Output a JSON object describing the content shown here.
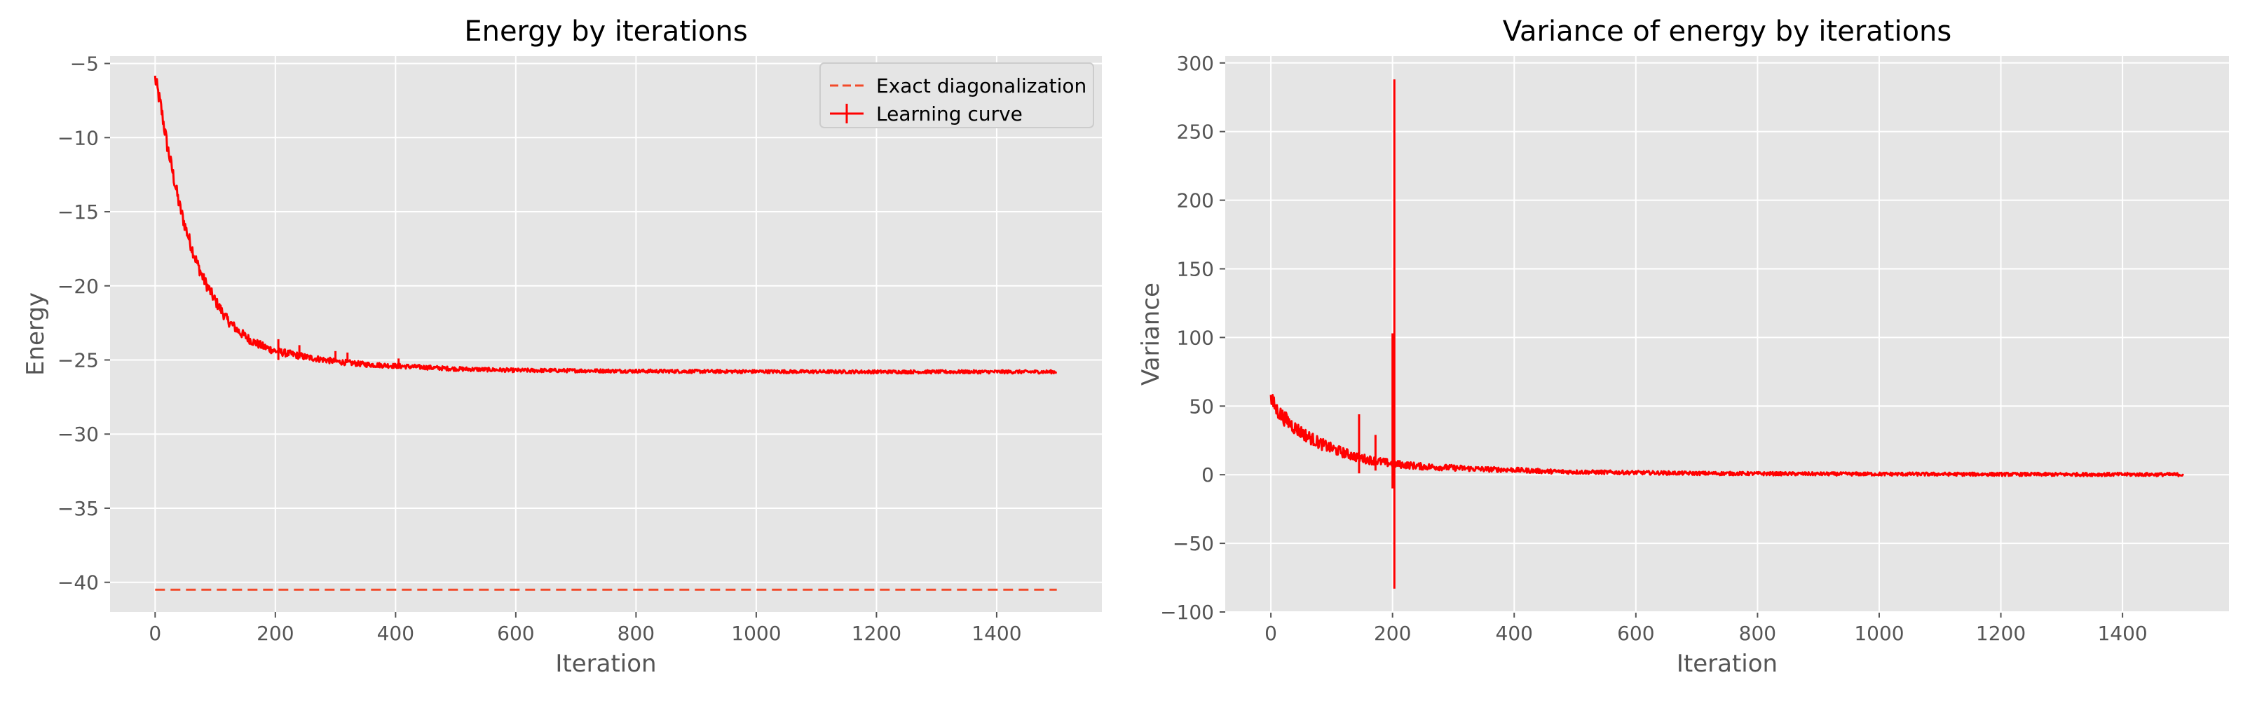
{
  "chart_data": [
    {
      "type": "line",
      "title": "Energy by iterations",
      "xlabel": "Iteration",
      "ylabel": "Energy",
      "xlim": [
        -75,
        1575
      ],
      "ylim": [
        -42,
        -4.5
      ],
      "xticks": [
        0,
        200,
        400,
        600,
        800,
        1000,
        1200,
        1400
      ],
      "yticks": [
        -5,
        -10,
        -15,
        -20,
        -25,
        -30,
        -35,
        -40
      ],
      "grid": true,
      "legend_placement": "top-right",
      "color": "#ff0000",
      "series": [
        {
          "name": "Exact diagonalization",
          "style": "dashed",
          "color": "#f24a2a",
          "x": [
            0,
            1500
          ],
          "y": [
            -40.5,
            -40.5
          ]
        },
        {
          "name": "Learning curve",
          "style": "solid-errorbar",
          "color": "#ff0000",
          "x": [
            0,
            10,
            20,
            30,
            40,
            50,
            60,
            70,
            80,
            100,
            120,
            140,
            160,
            180,
            200,
            250,
            300,
            350,
            400,
            450,
            500,
            600,
            700,
            800,
            900,
            1000,
            1100,
            1200,
            1300,
            1400,
            1500
          ],
          "y": [
            -6.0,
            -8.0,
            -10.5,
            -12.5,
            -14.5,
            -16.0,
            -17.3,
            -18.5,
            -19.5,
            -21.0,
            -22.3,
            -23.1,
            -23.7,
            -24.1,
            -24.4,
            -24.8,
            -25.1,
            -25.3,
            -25.4,
            -25.5,
            -25.6,
            -25.7,
            -25.72,
            -25.75,
            -25.77,
            -25.78,
            -25.79,
            -25.8,
            -25.8,
            -25.8,
            -25.8
          ],
          "spikes": [
            {
              "x": 205,
              "low": -25.0,
              "high": -23.6
            },
            {
              "x": 240,
              "low": -24.9,
              "high": -24.0
            },
            {
              "x": 300,
              "low": -25.0,
              "high": -24.4
            },
            {
              "x": 320,
              "low": -25.1,
              "high": -24.5
            },
            {
              "x": 405,
              "low": -25.6,
              "high": -24.9
            }
          ]
        }
      ]
    },
    {
      "type": "line",
      "title": "Variance of energy by iterations",
      "xlabel": "Iteration",
      "ylabel": "Variance",
      "xlim": [
        -75,
        1575
      ],
      "ylim": [
        -100,
        305
      ],
      "xticks": [
        0,
        200,
        400,
        600,
        800,
        1000,
        1200,
        1400
      ],
      "yticks": [
        300,
        250,
        200,
        150,
        100,
        50,
        0,
        -50,
        -100
      ],
      "grid": true,
      "color": "#ff0000",
      "series": [
        {
          "style": "solid-errorbar",
          "color": "#ff0000",
          "x": [
            0,
            10,
            20,
            30,
            40,
            50,
            60,
            80,
            100,
            120,
            140,
            160,
            180,
            200,
            250,
            300,
            350,
            400,
            450,
            500,
            600,
            700,
            800,
            900,
            1000,
            1100,
            1200,
            1300,
            1400,
            1500
          ],
          "y": [
            55,
            47,
            42,
            38,
            34,
            31,
            28,
            23,
            19,
            16,
            13,
            11,
            9.5,
            8,
            6,
            5,
            4,
            3.5,
            2.5,
            2,
            1.5,
            1,
            0.8,
            0.6,
            0.5,
            0.4,
            0.3,
            0.2,
            0.2,
            0.1
          ],
          "spikes": [
            {
              "x": 145,
              "low": 1,
              "high": 44
            },
            {
              "x": 172,
              "low": 3,
              "high": 29
            },
            {
              "x": 200,
              "low": -10,
              "high": 103
            },
            {
              "x": 203,
              "low": -83,
              "high": 288
            }
          ]
        }
      ]
    }
  ]
}
